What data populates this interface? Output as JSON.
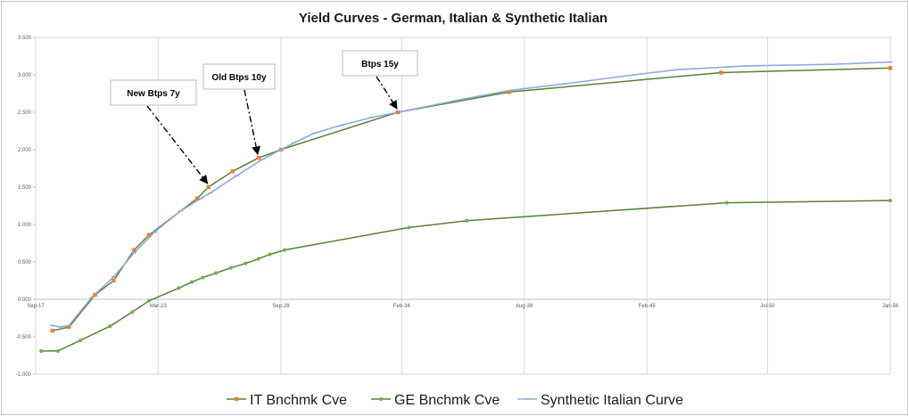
{
  "chart_data": {
    "type": "line",
    "title": "Yield Curves - German, Italian & Synthetic Italian",
    "xlabel": "",
    "ylabel": "",
    "x_range": [
      "2017-09-01",
      "2056-01-01"
    ],
    "ylim": [
      -1.0,
      3.5
    ],
    "y_ticks": [
      3.5,
      3.0,
      2.5,
      2.0,
      1.5,
      1.0,
      0.5,
      0.0,
      -0.5,
      -1.0
    ],
    "y_tick_labels": [
      "3.500",
      "3.000",
      "2.500",
      "2.000",
      "1.500",
      "1.000",
      "0.500",
      "0.000",
      "-0.500",
      "-1.000"
    ],
    "x_ticks": [
      "2017-09-01",
      "2023-03-01",
      "2028-09-01",
      "2034-02-01",
      "2039-08-01",
      "2045-02-01",
      "2050-07-01",
      "2056-01-01"
    ],
    "x_tick_labels": [
      "Sep-17",
      "Mar-23",
      "Sep-28",
      "Feb-34",
      "Aug-39",
      "Feb-45",
      "Jul-50",
      "Jan-56"
    ],
    "grid": "vertical",
    "legend_position": "bottom",
    "series": [
      {
        "name": "IT Bnchmk Cve",
        "color": "#548235",
        "marker": "square",
        "marker_color": "#ed7d31",
        "points": [
          [
            "2018-06-01",
            -0.42
          ],
          [
            "2019-03-01",
            -0.37
          ],
          [
            "2020-05-01",
            0.06
          ],
          [
            "2021-03-01",
            0.25
          ],
          [
            "2022-02-01",
            0.66
          ],
          [
            "2022-10-01",
            0.86
          ],
          [
            "2024-12-01",
            1.35
          ],
          [
            "2025-06-01",
            1.5
          ],
          [
            "2026-07-01",
            1.71
          ],
          [
            "2027-09-01",
            1.89
          ],
          [
            "2028-09-01",
            2.0
          ],
          [
            "2033-12-01",
            2.5
          ],
          [
            "2038-12-01",
            2.77
          ],
          [
            "2048-06-01",
            3.03
          ],
          [
            "2056-01-01",
            3.09
          ]
        ]
      },
      {
        "name": "GE Bnchmk Cve",
        "color": "#548235",
        "marker": "dot",
        "marker_color": "#70ad47",
        "points": [
          [
            "2017-12-01",
            -0.69
          ],
          [
            "2018-09-01",
            -0.69
          ],
          [
            "2019-09-01",
            -0.55
          ],
          [
            "2021-01-01",
            -0.36
          ],
          [
            "2022-01-01",
            -0.17
          ],
          [
            "2022-10-01",
            -0.02
          ],
          [
            "2024-02-01",
            0.15
          ],
          [
            "2024-09-01",
            0.23
          ],
          [
            "2025-03-01",
            0.29
          ],
          [
            "2025-10-01",
            0.35
          ],
          [
            "2026-06-01",
            0.42
          ],
          [
            "2027-02-01",
            0.48
          ],
          [
            "2027-09-01",
            0.54
          ],
          [
            "2028-03-01",
            0.6
          ],
          [
            "2028-11-01",
            0.66
          ],
          [
            "2034-06-01",
            0.96
          ],
          [
            "2037-01-01",
            1.05
          ],
          [
            "2048-09-01",
            1.29
          ],
          [
            "2056-01-01",
            1.32
          ]
        ]
      },
      {
        "name": "Synthetic Italian Curve",
        "color": "#8faadc",
        "marker": "dash",
        "marker_color": "#8faadc",
        "points": [
          [
            "2018-06-01",
            -0.35
          ],
          [
            "2018-10-01",
            -0.37
          ],
          [
            "2019-03-01",
            -0.35
          ],
          [
            "2020-03-01",
            0.02
          ],
          [
            "2021-03-01",
            0.3
          ],
          [
            "2022-02-01",
            0.62
          ],
          [
            "2023-01-01",
            0.9
          ],
          [
            "2024-03-01",
            1.18
          ],
          [
            "2025-02-01",
            1.35
          ],
          [
            "2025-07-01",
            1.42
          ],
          [
            "2026-09-01",
            1.65
          ],
          [
            "2027-11-01",
            1.87
          ],
          [
            "2028-09-01",
            2.0
          ],
          [
            "2029-04-01",
            2.09
          ],
          [
            "2030-03-01",
            2.22
          ],
          [
            "2031-06-01",
            2.33
          ],
          [
            "2032-10-01",
            2.43
          ],
          [
            "2034-06-01",
            2.53
          ],
          [
            "2036-10-01",
            2.67
          ],
          [
            "2038-12-01",
            2.79
          ],
          [
            "2041-06-01",
            2.88
          ],
          [
            "2044-07-01",
            3.0
          ],
          [
            "2046-07-01",
            3.07
          ],
          [
            "2049-08-01",
            3.12
          ],
          [
            "2053-06-01",
            3.14
          ],
          [
            "2056-01-01",
            3.17
          ]
        ]
      }
    ],
    "annotations": [
      {
        "text": "New Btps 7y",
        "target": [
          "2025-06-01",
          1.5
        ],
        "style": "dash-dot-arrow"
      },
      {
        "text": "Old Btps 10y",
        "target": [
          "2027-09-01",
          1.89
        ],
        "style": "dash-dot-arrow"
      },
      {
        "text": "Btps 15y",
        "target": [
          "2033-12-01",
          2.5
        ],
        "style": "dash-dot-arrow"
      }
    ]
  }
}
